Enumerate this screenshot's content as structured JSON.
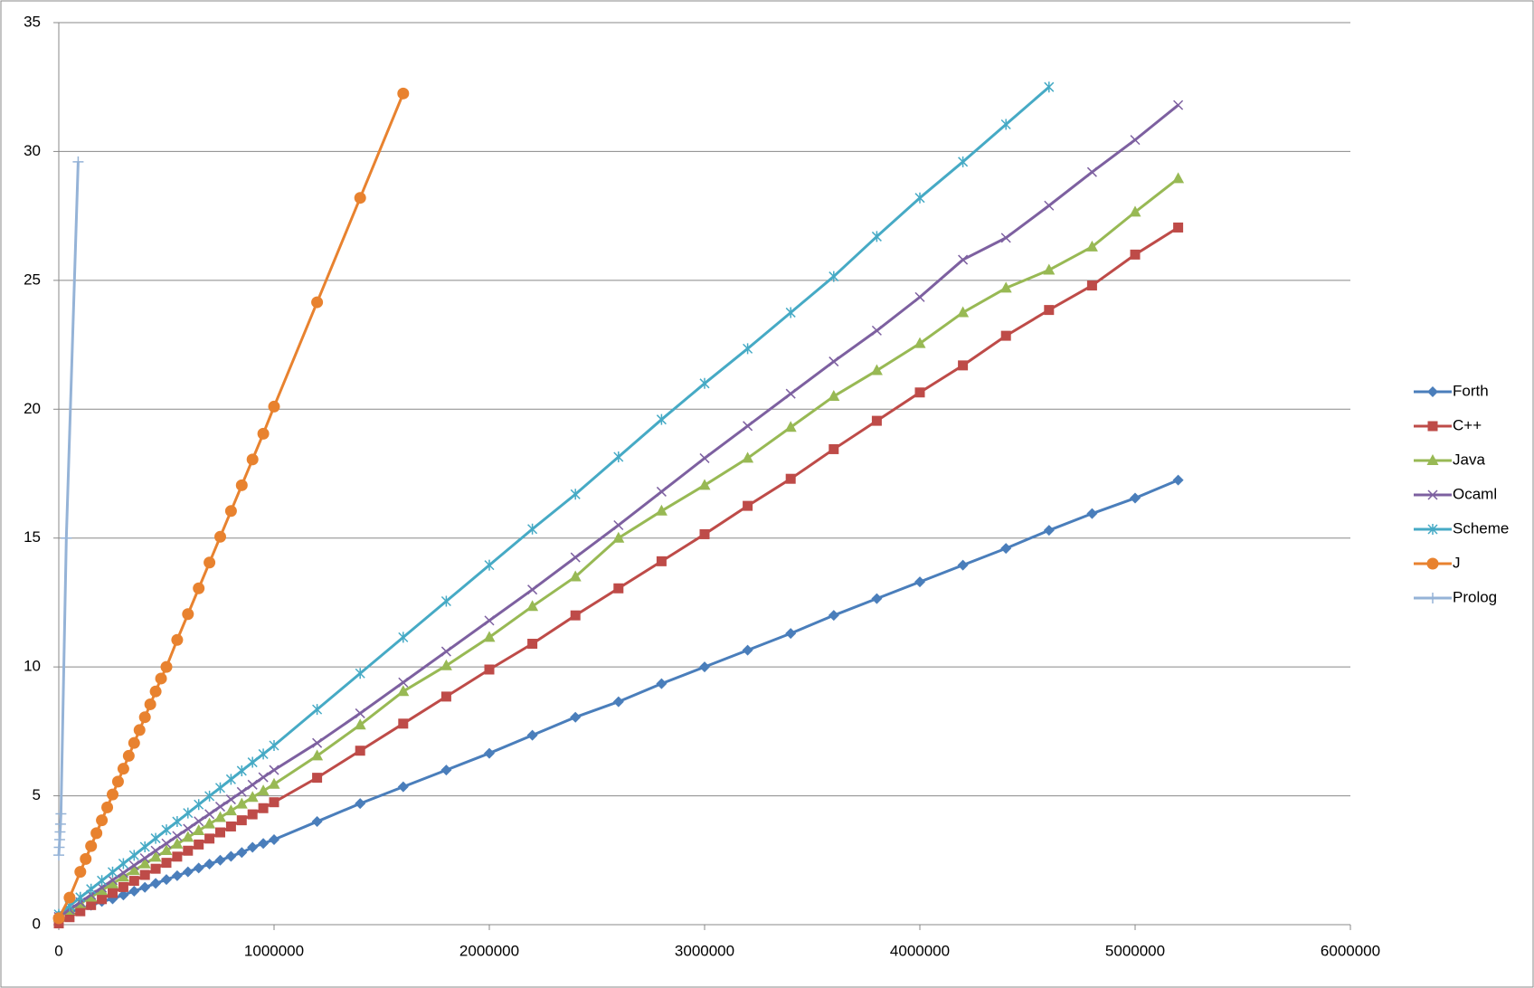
{
  "chart_data": {
    "type": "line",
    "xlim": [
      0,
      6000000
    ],
    "xticks": [
      0,
      1000000,
      2000000,
      3000000,
      4000000,
      5000000,
      6000000
    ],
    "ylim": [
      0,
      35
    ],
    "yticks": [
      0,
      5,
      10,
      15,
      20,
      25,
      30,
      35
    ],
    "grid": true,
    "legend": "right",
    "series": [
      {
        "name": "Forth",
        "color": "#4a7ebb",
        "marker": "diamond",
        "x": [
          0,
          50000,
          100000,
          150000,
          200000,
          250000,
          300000,
          350000,
          400000,
          450000,
          500000,
          550000,
          600000,
          650000,
          700000,
          750000,
          800000,
          850000,
          900000,
          950000,
          1000000,
          1200000,
          1400000,
          1600000,
          1800000,
          2000000,
          2200000,
          2400000,
          2600000,
          2800000,
          3000000,
          3200000,
          3400000,
          3600000,
          3800000,
          4000000,
          4200000,
          4400000,
          4600000,
          4800000,
          5000000,
          5200000
        ],
        "values": [
          0.35,
          0.5,
          0.6,
          0.75,
          0.9,
          1.0,
          1.15,
          1.3,
          1.45,
          1.6,
          1.75,
          1.9,
          2.05,
          2.2,
          2.35,
          2.5,
          2.65,
          2.8,
          3.0,
          3.15,
          3.3,
          4.0,
          4.7,
          5.35,
          6.0,
          6.65,
          7.35,
          8.05,
          8.65,
          9.35,
          10.0,
          10.65,
          11.3,
          12.0,
          12.65,
          13.3,
          13.95,
          14.6,
          15.3,
          15.95,
          16.55,
          17.25
        ]
      },
      {
        "name": "C++",
        "color": "#be4b48",
        "marker": "square",
        "x": [
          0,
          50000,
          100000,
          150000,
          200000,
          250000,
          300000,
          350000,
          400000,
          450000,
          500000,
          550000,
          600000,
          650000,
          700000,
          750000,
          800000,
          850000,
          900000,
          950000,
          1000000,
          1200000,
          1400000,
          1600000,
          1800000,
          2000000,
          2200000,
          2400000,
          2600000,
          2800000,
          3000000,
          3200000,
          3400000,
          3600000,
          3800000,
          4000000,
          4200000,
          4400000,
          4600000,
          4800000,
          5000000,
          5200000
        ],
        "values": [
          0.05,
          0.29,
          0.52,
          0.76,
          0.99,
          1.23,
          1.46,
          1.7,
          1.93,
          2.17,
          2.4,
          2.64,
          2.87,
          3.11,
          3.34,
          3.58,
          3.81,
          4.05,
          4.28,
          4.52,
          4.75,
          5.7,
          6.75,
          7.8,
          8.85,
          9.9,
          10.9,
          12.0,
          13.05,
          14.1,
          15.15,
          16.25,
          17.3,
          18.45,
          19.55,
          20.65,
          21.7,
          22.85,
          23.85,
          24.8,
          26.0,
          27.05
        ]
      },
      {
        "name": "Java",
        "color": "#98b954",
        "marker": "triangle",
        "x": [
          0,
          50000,
          100000,
          150000,
          200000,
          250000,
          300000,
          350000,
          400000,
          450000,
          500000,
          550000,
          600000,
          650000,
          700000,
          750000,
          800000,
          850000,
          900000,
          950000,
          1000000,
          1200000,
          1400000,
          1600000,
          1800000,
          2000000,
          2200000,
          2400000,
          2600000,
          2800000,
          3000000,
          3200000,
          3400000,
          3600000,
          3800000,
          4000000,
          4200000,
          4400000,
          4600000,
          4800000,
          5000000,
          5200000
        ],
        "values": [
          0.3,
          0.56,
          0.82,
          1.07,
          1.33,
          1.59,
          1.85,
          2.1,
          2.36,
          2.62,
          2.88,
          3.13,
          3.39,
          3.65,
          3.91,
          4.16,
          4.42,
          4.68,
          4.94,
          5.19,
          5.45,
          6.55,
          7.75,
          9.05,
          10.05,
          11.15,
          12.35,
          13.5,
          15.0,
          16.05,
          17.05,
          18.1,
          19.3,
          20.5,
          21.5,
          22.55,
          23.75,
          24.7,
          25.4,
          26.3,
          27.65,
          28.95
        ]
      },
      {
        "name": "Ocaml",
        "color": "#7d60a0",
        "marker": "x",
        "x": [
          0,
          50000,
          100000,
          150000,
          200000,
          250000,
          300000,
          350000,
          400000,
          450000,
          500000,
          550000,
          600000,
          650000,
          700000,
          750000,
          800000,
          850000,
          900000,
          950000,
          1000000,
          1200000,
          1400000,
          1600000,
          1800000,
          2000000,
          2200000,
          2400000,
          2600000,
          2800000,
          3000000,
          3200000,
          3400000,
          3600000,
          3800000,
          4000000,
          4200000,
          4400000,
          4600000,
          4800000,
          5000000,
          5200000
        ],
        "values": [
          0.3,
          0.59,
          0.87,
          1.16,
          1.44,
          1.73,
          2.01,
          2.3,
          2.58,
          2.87,
          3.15,
          3.44,
          3.72,
          4.01,
          4.29,
          4.58,
          4.86,
          5.15,
          5.43,
          5.72,
          6.0,
          7.05,
          8.2,
          9.4,
          10.6,
          11.8,
          13.0,
          14.25,
          15.5,
          16.8,
          18.1,
          19.35,
          20.6,
          21.85,
          23.05,
          24.35,
          25.8,
          26.65,
          27.9,
          29.2,
          30.45,
          31.8
        ]
      },
      {
        "name": "Scheme",
        "color": "#46aac5",
        "marker": "star",
        "x": [
          0,
          50000,
          100000,
          150000,
          200000,
          250000,
          300000,
          350000,
          400000,
          450000,
          500000,
          550000,
          600000,
          650000,
          700000,
          750000,
          800000,
          850000,
          900000,
          950000,
          1000000,
          1200000,
          1400000,
          1600000,
          1800000,
          2000000,
          2200000,
          2400000,
          2600000,
          2800000,
          3000000,
          3200000,
          3400000,
          3600000,
          3800000,
          4000000,
          4200000,
          4400000,
          4600000
        ],
        "values": [
          0.4,
          0.73,
          1.06,
          1.38,
          1.71,
          2.04,
          2.37,
          2.69,
          3.02,
          3.35,
          3.68,
          4.0,
          4.33,
          4.66,
          4.99,
          5.31,
          5.64,
          5.97,
          6.3,
          6.62,
          6.95,
          8.35,
          9.75,
          11.15,
          12.55,
          13.95,
          15.35,
          16.7,
          18.15,
          19.6,
          21.0,
          22.35,
          23.75,
          25.15,
          26.7,
          28.2,
          29.6,
          31.05,
          32.5
        ]
      },
      {
        "name": "J",
        "color": "#e8822f",
        "marker": "circle",
        "x": [
          0,
          50000,
          100000,
          125000,
          150000,
          175000,
          200000,
          225000,
          250000,
          275000,
          300000,
          325000,
          350000,
          375000,
          400000,
          425000,
          450000,
          475000,
          500000,
          550000,
          600000,
          650000,
          700000,
          750000,
          800000,
          850000,
          900000,
          950000,
          1000000,
          1200000,
          1400000,
          1600000
        ],
        "values": [
          0.25,
          1.05,
          2.05,
          2.55,
          3.05,
          3.55,
          4.05,
          4.55,
          5.05,
          5.55,
          6.05,
          6.55,
          7.05,
          7.55,
          8.05,
          8.55,
          9.05,
          9.55,
          10.0,
          11.05,
          12.05,
          13.05,
          14.05,
          15.05,
          16.05,
          17.05,
          18.05,
          19.05,
          20.1,
          24.15,
          28.2,
          32.25
        ]
      },
      {
        "name": "Prolog",
        "color": "#95b3d7",
        "marker": "plus",
        "x": [
          0,
          2000,
          4000,
          6000,
          8000,
          10000,
          35000,
          90000
        ],
        "values": [
          2.7,
          3.0,
          3.3,
          3.6,
          3.9,
          4.3,
          15.0,
          29.6
        ]
      }
    ]
  }
}
